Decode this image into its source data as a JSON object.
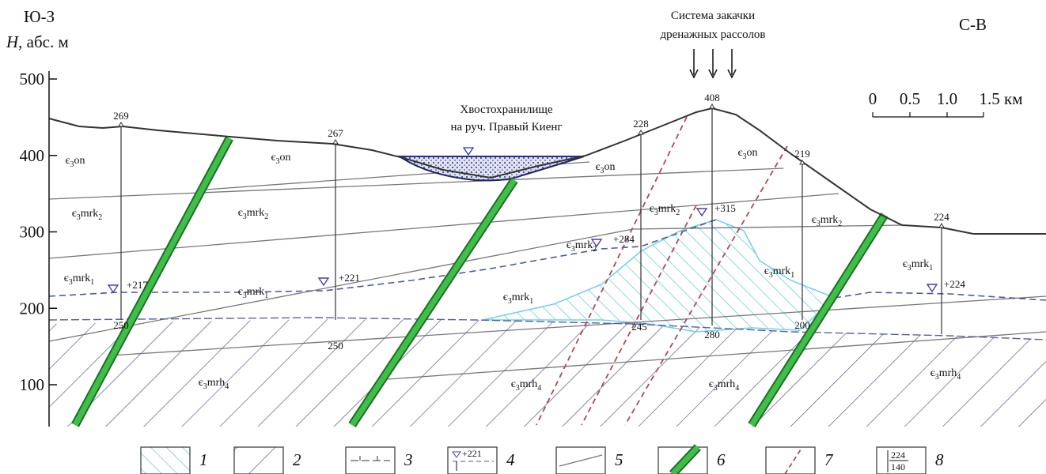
{
  "header": {
    "left_direction": "Ю-З",
    "right_direction": "С-В",
    "axis_symbol": "H",
    "axis_unit": ", абс. м"
  },
  "axis": {
    "ticks": [
      500,
      400,
      300,
      200,
      100
    ]
  },
  "scale_bar": {
    "labels": [
      "0",
      "0.5",
      "1.0",
      "1.5 км"
    ]
  },
  "annotations": {
    "injection": [
      "Система закачки",
      "дренажных рассолов"
    ],
    "tailings": [
      "Хвостохранилище",
      "на руч. Правый Киенг"
    ]
  },
  "wells": [
    {
      "top": "269",
      "level": "+217",
      "bottom": "250"
    },
    {
      "top": "267",
      "level": "+221",
      "bottom": "250"
    },
    {
      "top": "228",
      "level": "+284",
      "bottom": "245"
    },
    {
      "top": "408",
      "level": "+315",
      "bottom": "280"
    },
    {
      "top": "219",
      "bottom": "200"
    },
    {
      "top": "224",
      "level": "+224"
    }
  ],
  "formations": [
    {
      "symbol": "є",
      "age": "3",
      "suite": "on"
    },
    {
      "symbol": "є",
      "age": "3",
      "suite": "on"
    },
    {
      "symbol": "є",
      "age": "3",
      "suite": "on"
    },
    {
      "symbol": "є",
      "age": "3",
      "suite": "on"
    },
    {
      "symbol": "є",
      "age": "3",
      "suite": "mrk",
      "index": "2"
    },
    {
      "symbol": "є",
      "age": "3",
      "suite": "mrk",
      "index": "2"
    },
    {
      "symbol": "є",
      "age": "3",
      "suite": "mrk",
      "index": "2"
    },
    {
      "symbol": "є",
      "age": "3",
      "suite": "mrk",
      "index": "2"
    },
    {
      "symbol": "є",
      "age": "3",
      "suite": "mrk",
      "index": "2"
    },
    {
      "symbol": "є",
      "age": "3",
      "suite": "mrk",
      "index": "1"
    },
    {
      "symbol": "є",
      "age": "3",
      "suite": "mrk",
      "index": "1"
    },
    {
      "symbol": "є",
      "age": "3",
      "suite": "mrk",
      "index": "1"
    },
    {
      "symbol": "є",
      "age": "3",
      "suite": "mrk",
      "index": "1"
    },
    {
      "symbol": "є",
      "age": "3",
      "suite": "mrk",
      "index": "1"
    },
    {
      "symbol": "є",
      "age": "3",
      "suite": "mrh",
      "index": "4"
    },
    {
      "symbol": "є",
      "age": "3",
      "suite": "mrh",
      "index": "4"
    },
    {
      "symbol": "є",
      "age": "3",
      "suite": "mrh",
      "index": "4"
    },
    {
      "symbol": "є",
      "age": "3",
      "suite": "mrh",
      "index": "4"
    }
  ],
  "legend": [
    {
      "number": "1"
    },
    {
      "number": "2"
    },
    {
      "number": "3"
    },
    {
      "number": "4",
      "sample": "+221"
    },
    {
      "number": "5"
    },
    {
      "number": "6"
    },
    {
      "number": "7"
    },
    {
      "number": "8",
      "sample": [
        "224",
        "140"
      ]
    }
  ]
}
